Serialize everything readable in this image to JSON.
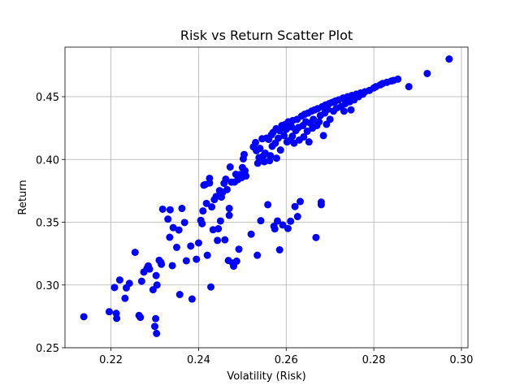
{
  "chart_data": {
    "type": "scatter",
    "title": "Risk vs Return Scatter Plot",
    "xlabel": "Volatility (Risk)",
    "ylabel": "Return",
    "xlim": [
      0.2095,
      0.3015
    ],
    "ylim": [
      0.25,
      0.4895
    ],
    "xticks": [
      0.22,
      0.24,
      0.26,
      0.28,
      0.3
    ],
    "xtick_labels": [
      "0.22",
      "0.24",
      "0.26",
      "0.28",
      "0.30"
    ],
    "yticks": [
      0.25,
      0.3,
      0.35,
      0.4,
      0.45
    ],
    "ytick_labels": [
      "0.25",
      "0.30",
      "0.35",
      "0.40",
      "0.45"
    ],
    "grid": true,
    "marker_color": "#0000ff",
    "series": [
      {
        "points": [
          [
            0.2138,
            0.2747
          ],
          [
            0.2196,
            0.2787
          ],
          [
            0.2208,
            0.298
          ],
          [
            0.2212,
            0.2774
          ],
          [
            0.2213,
            0.2734
          ],
          [
            0.222,
            0.304
          ],
          [
            0.2232,
            0.2894
          ],
          [
            0.2235,
            0.2977
          ],
          [
            0.2242,
            0.3013
          ],
          [
            0.2255,
            0.326
          ],
          [
            0.2264,
            0.2757
          ],
          [
            0.2267,
            0.2742
          ],
          [
            0.227,
            0.303
          ],
          [
            0.2275,
            0.3103
          ],
          [
            0.2282,
            0.313
          ],
          [
            0.2285,
            0.3152
          ],
          [
            0.2288,
            0.3127
          ],
          [
            0.2296,
            0.2962
          ],
          [
            0.23,
            0.267
          ],
          [
            0.2302,
            0.2732
          ],
          [
            0.2303,
            0.3075
          ],
          [
            0.2304,
            0.2614
          ],
          [
            0.2305,
            0.3
          ],
          [
            0.231,
            0.3197
          ],
          [
            0.2314,
            0.318
          ],
          [
            0.2315,
            0.3165
          ],
          [
            0.2318,
            0.3604
          ],
          [
            0.233,
            0.3525
          ],
          [
            0.2335,
            0.3599
          ],
          [
            0.2334,
            0.338
          ],
          [
            0.234,
            0.3154
          ],
          [
            0.2342,
            0.3457
          ],
          [
            0.235,
            0.33
          ],
          [
            0.2355,
            0.3438
          ],
          [
            0.2357,
            0.2924
          ],
          [
            0.2362,
            0.361
          ],
          [
            0.2368,
            0.3498
          ],
          [
            0.2372,
            0.3193
          ],
          [
            0.2382,
            0.331
          ],
          [
            0.2385,
            0.2888
          ],
          [
            0.2395,
            0.3205
          ],
          [
            0.24,
            0.3335
          ],
          [
            0.2405,
            0.3515
          ],
          [
            0.2408,
            0.3488
          ],
          [
            0.241,
            0.359
          ],
          [
            0.2412,
            0.3795
          ],
          [
            0.2415,
            0.38
          ],
          [
            0.2418,
            0.365
          ],
          [
            0.242,
            0.3237
          ],
          [
            0.2425,
            0.3812
          ],
          [
            0.2425,
            0.385
          ],
          [
            0.2428,
            0.2984
          ],
          [
            0.243,
            0.3622
          ],
          [
            0.2433,
            0.344
          ],
          [
            0.2436,
            0.368
          ],
          [
            0.244,
            0.3705
          ],
          [
            0.2443,
            0.3355
          ],
          [
            0.2445,
            0.3448
          ],
          [
            0.2448,
            0.3752
          ],
          [
            0.245,
            0.351
          ],
          [
            0.2452,
            0.37
          ],
          [
            0.2455,
            0.3738
          ],
          [
            0.2458,
            0.381
          ],
          [
            0.246,
            0.336
          ],
          [
            0.2462,
            0.3843
          ],
          [
            0.2465,
            0.376
          ],
          [
            0.2468,
            0.3195
          ],
          [
            0.247,
            0.361
          ],
          [
            0.247,
            0.3555
          ],
          [
            0.2472,
            0.394
          ],
          [
            0.2475,
            0.382
          ],
          [
            0.2478,
            0.3175
          ],
          [
            0.248,
            0.315
          ],
          [
            0.2482,
            0.382
          ],
          [
            0.2485,
            0.3882
          ],
          [
            0.2487,
            0.319
          ],
          [
            0.249,
            0.384
          ],
          [
            0.2492,
            0.3285
          ],
          [
            0.2495,
            0.388
          ],
          [
            0.2498,
            0.3855
          ],
          [
            0.25,
            0.3935
          ],
          [
            0.2502,
            0.4005
          ],
          [
            0.2504,
            0.404
          ],
          [
            0.2506,
            0.391
          ],
          [
            0.2508,
            0.3868
          ],
          [
            0.252,
            0.3405
          ],
          [
            0.2525,
            0.41
          ],
          [
            0.253,
            0.4135
          ],
          [
            0.2532,
            0.407
          ],
          [
            0.2534,
            0.3237
          ],
          [
            0.2535,
            0.397
          ],
          [
            0.2538,
            0.4015
          ],
          [
            0.254,
            0.4088
          ],
          [
            0.2542,
            0.3512
          ],
          [
            0.2545,
            0.4165
          ],
          [
            0.2548,
            0.403
          ],
          [
            0.255,
            0.3982
          ],
          [
            0.2552,
            0.405
          ],
          [
            0.2555,
            0.417
          ],
          [
            0.2558,
            0.364
          ],
          [
            0.256,
            0.416
          ],
          [
            0.2562,
            0.399
          ],
          [
            0.2564,
            0.403
          ],
          [
            0.2566,
            0.4195
          ],
          [
            0.2568,
            0.4105
          ],
          [
            0.257,
            0.4215
          ],
          [
            0.2572,
            0.3468
          ],
          [
            0.2574,
            0.3447
          ],
          [
            0.2575,
            0.413
          ],
          [
            0.2577,
            0.4245
          ],
          [
            0.2578,
            0.401
          ],
          [
            0.258,
            0.351
          ],
          [
            0.2582,
            0.417
          ],
          [
            0.2585,
            0.423
          ],
          [
            0.2585,
            0.328
          ],
          [
            0.2587,
            0.4075
          ],
          [
            0.259,
            0.427
          ],
          [
            0.2592,
            0.3478
          ],
          [
            0.2595,
            0.419
          ],
          [
            0.2598,
            0.428
          ],
          [
            0.26,
            0.424
          ],
          [
            0.2602,
            0.414
          ],
          [
            0.2604,
            0.345
          ],
          [
            0.2605,
            0.43
          ],
          [
            0.2607,
            0.415
          ],
          [
            0.261,
            0.3508
          ],
          [
            0.2612,
            0.426
          ],
          [
            0.2614,
            0.4185
          ],
          [
            0.2615,
            0.431
          ],
          [
            0.2618,
            0.413
          ],
          [
            0.262,
            0.3625
          ],
          [
            0.2622,
            0.423
          ],
          [
            0.2625,
            0.432
          ],
          [
            0.2626,
            0.3545
          ],
          [
            0.2628,
            0.4255
          ],
          [
            0.263,
            0.4155
          ],
          [
            0.2632,
            0.3665
          ],
          [
            0.2635,
            0.4345
          ],
          [
            0.2638,
            0.427
          ],
          [
            0.264,
            0.418
          ],
          [
            0.2642,
            0.436
          ],
          [
            0.2645,
            0.43
          ],
          [
            0.2648,
            0.4225
          ],
          [
            0.265,
            0.437
          ],
          [
            0.2652,
            0.414
          ],
          [
            0.2655,
            0.429
          ],
          [
            0.2658,
            0.4385
          ],
          [
            0.266,
            0.425
          ],
          [
            0.2662,
            0.432
          ],
          [
            0.2665,
            0.4395
          ],
          [
            0.2668,
            0.3378
          ],
          [
            0.267,
            0.427
          ],
          [
            0.2672,
            0.4405
          ],
          [
            0.2675,
            0.43
          ],
          [
            0.2678,
            0.435
          ],
          [
            0.268,
            0.366
          ],
          [
            0.268,
            0.364
          ],
          [
            0.2682,
            0.442
          ],
          [
            0.2685,
            0.419
          ],
          [
            0.2688,
            0.437
          ],
          [
            0.269,
            0.4435
          ],
          [
            0.2692,
            0.428
          ],
          [
            0.2695,
            0.44
          ],
          [
            0.2698,
            0.4445
          ],
          [
            0.27,
            0.432
          ],
          [
            0.2705,
            0.4455
          ],
          [
            0.2708,
            0.4385
          ],
          [
            0.2712,
            0.4465
          ],
          [
            0.2715,
            0.441
          ],
          [
            0.272,
            0.4475
          ],
          [
            0.2725,
            0.442
          ],
          [
            0.273,
            0.449
          ],
          [
            0.2732,
            0.4385
          ],
          [
            0.2735,
            0.4445
          ],
          [
            0.274,
            0.45
          ],
          [
            0.2745,
            0.446
          ],
          [
            0.2748,
            0.4395
          ],
          [
            0.275,
            0.451
          ],
          [
            0.2755,
            0.4475
          ],
          [
            0.276,
            0.452
          ],
          [
            0.2765,
            0.45
          ],
          [
            0.277,
            0.453
          ],
          [
            0.2775,
            0.452
          ],
          [
            0.278,
            0.454
          ],
          [
            0.279,
            0.455
          ],
          [
            0.28,
            0.457
          ],
          [
            0.2805,
            0.458
          ],
          [
            0.2815,
            0.4595
          ],
          [
            0.282,
            0.4605
          ],
          [
            0.283,
            0.4615
          ],
          [
            0.284,
            0.4625
          ],
          [
            0.2845,
            0.463
          ],
          [
            0.2855,
            0.464
          ],
          [
            0.288,
            0.458
          ],
          [
            0.2922,
            0.4685
          ],
          [
            0.2972,
            0.48
          ]
        ]
      }
    ]
  }
}
